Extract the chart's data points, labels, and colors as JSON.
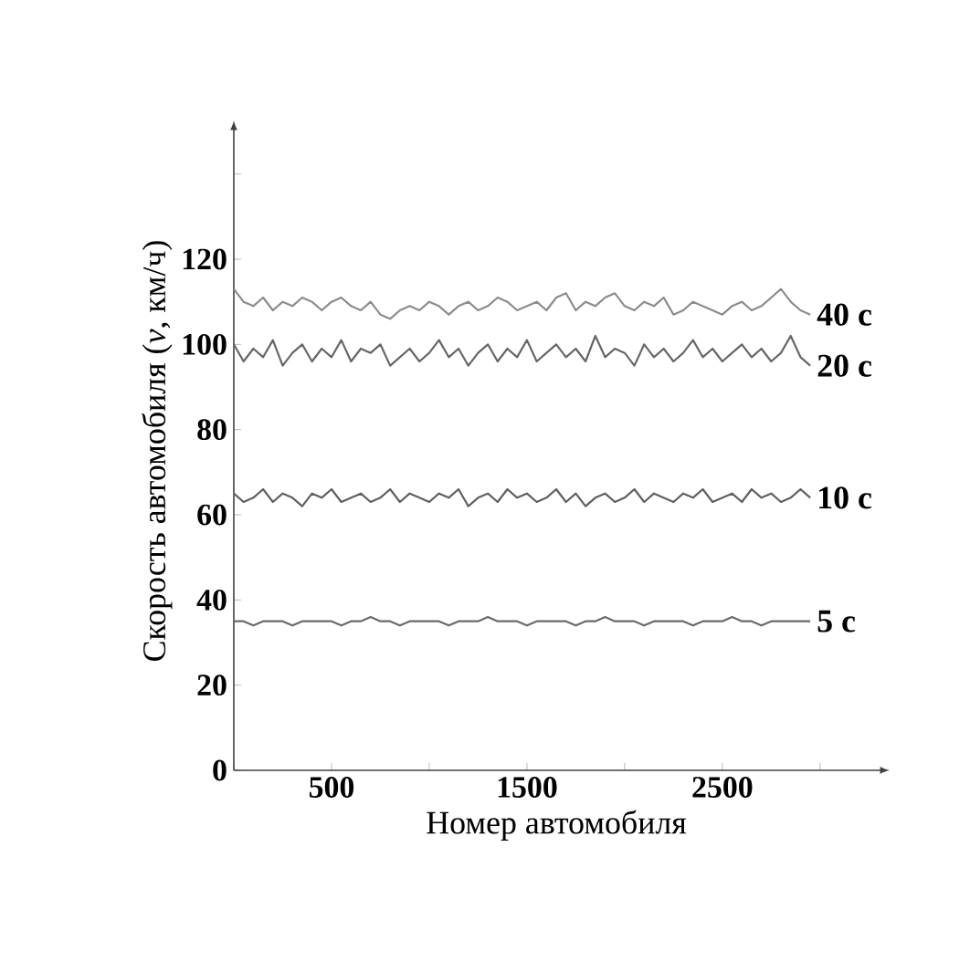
{
  "chart_data": {
    "type": "line",
    "xlabel": "Номер автомобиля",
    "ylabel": "Скорость автомобиля (*v*, км/ч)",
    "x": [
      0,
      50,
      100,
      150,
      200,
      250,
      300,
      350,
      400,
      450,
      500,
      550,
      600,
      650,
      700,
      750,
      800,
      850,
      900,
      950,
      1000,
      1050,
      1100,
      1150,
      1200,
      1250,
      1300,
      1350,
      1400,
      1450,
      1500,
      1550,
      1600,
      1650,
      1700,
      1750,
      1800,
      1850,
      1900,
      1950,
      2000,
      2050,
      2100,
      2150,
      2200,
      2250,
      2300,
      2350,
      2400,
      2450,
      2500,
      2550,
      2600,
      2650,
      2700,
      2750,
      2800,
      2850,
      2900,
      2950
    ],
    "series": [
      {
        "name": "40 с",
        "color": "#8c8c8c",
        "values": [
          113,
          110,
          109,
          111,
          108,
          110,
          109,
          111,
          110,
          108,
          110,
          111,
          109,
          108,
          110,
          107,
          106,
          108,
          109,
          108,
          110,
          109,
          107,
          109,
          110,
          108,
          109,
          111,
          110,
          108,
          109,
          110,
          108,
          111,
          112,
          108,
          110,
          109,
          111,
          112,
          109,
          108,
          110,
          109,
          111,
          107,
          108,
          110,
          109,
          108,
          107,
          109,
          110,
          108,
          109,
          111,
          113,
          110,
          108,
          107
        ]
      },
      {
        "name": "20 с",
        "color": "#666666",
        "values": [
          100,
          96,
          99,
          97,
          101,
          95,
          98,
          100,
          96,
          99,
          97,
          101,
          96,
          99,
          98,
          100,
          95,
          97,
          99,
          96,
          98,
          101,
          97,
          99,
          95,
          98,
          100,
          96,
          99,
          97,
          101,
          96,
          98,
          100,
          97,
          99,
          96,
          102,
          97,
          99,
          98,
          95,
          100,
          97,
          99,
          96,
          98,
          101,
          97,
          99,
          96,
          98,
          100,
          97,
          99,
          96,
          98,
          102,
          97,
          95
        ]
      },
      {
        "name": "10 с",
        "color": "#606060",
        "values": [
          65,
          63,
          64,
          66,
          63,
          65,
          64,
          62,
          65,
          64,
          66,
          63,
          64,
          65,
          63,
          64,
          66,
          63,
          65,
          64,
          63,
          65,
          64,
          66,
          62,
          64,
          65,
          63,
          66,
          64,
          65,
          63,
          64,
          66,
          63,
          65,
          62,
          64,
          65,
          63,
          64,
          66,
          63,
          65,
          64,
          63,
          65,
          64,
          66,
          63,
          64,
          65,
          63,
          66,
          64,
          65,
          63,
          64,
          66,
          64
        ]
      },
      {
        "name": "5 с",
        "color": "#6a6a6a",
        "values": [
          35,
          35,
          34,
          35,
          35,
          35,
          34,
          35,
          35,
          35,
          35,
          34,
          35,
          35,
          36,
          35,
          35,
          34,
          35,
          35,
          35,
          35,
          34,
          35,
          35,
          35,
          36,
          35,
          35,
          35,
          34,
          35,
          35,
          35,
          35,
          34,
          35,
          35,
          36,
          35,
          35,
          35,
          34,
          35,
          35,
          35,
          35,
          34,
          35,
          35,
          35,
          36,
          35,
          35,
          34,
          35,
          35,
          35,
          35,
          35
        ]
      }
    ],
    "xlim": [
      0,
      3300
    ],
    "ylim": [
      0,
      150
    ],
    "xticks": [
      {
        "value": 0,
        "label": null
      },
      500,
      {
        "value": 1000,
        "label": null
      },
      1500,
      {
        "value": 2000,
        "label": null
      },
      2500,
      {
        "value": 3000,
        "label": null
      }
    ],
    "yticks": [
      0,
      20,
      40,
      60,
      80,
      100,
      120,
      {
        "value": 140,
        "label": null
      }
    ],
    "grid": false,
    "legend": false,
    "marker": "none"
  }
}
